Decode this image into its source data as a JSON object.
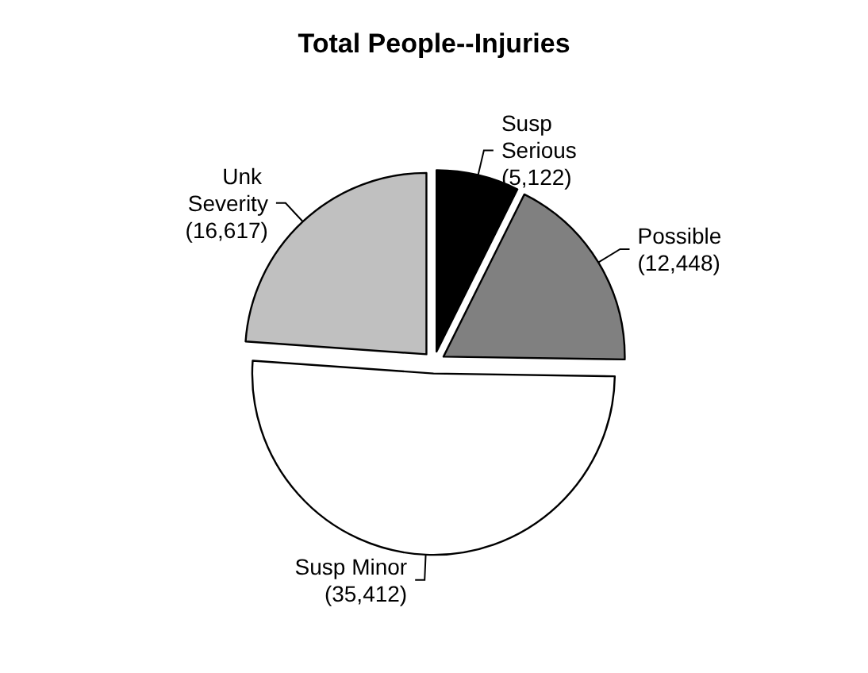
{
  "chart_data": {
    "type": "pie",
    "title": "Total People--Injuries",
    "categories": [
      "Susp Serious",
      "Possible",
      "Susp Minor",
      "Unk Severity"
    ],
    "values": [
      5122,
      12448,
      35412,
      16617
    ],
    "colors": [
      "#000000",
      "#808080",
      "#ffffff",
      "#c0c0c0"
    ],
    "value_labels": [
      "(5,122)",
      "(12,448)",
      "(35,412)",
      "(16,617)"
    ],
    "legend": false
  }
}
